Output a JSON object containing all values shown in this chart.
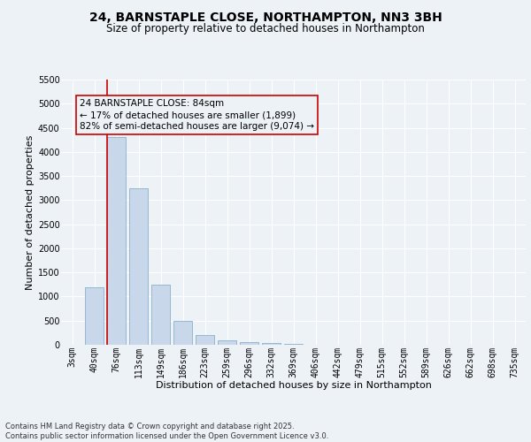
{
  "title_line1": "24, BARNSTAPLE CLOSE, NORTHAMPTON, NN3 3BH",
  "title_line2": "Size of property relative to detached houses in Northampton",
  "xlabel": "Distribution of detached houses by size in Northampton",
  "ylabel": "Number of detached properties",
  "categories": [
    "3sqm",
    "40sqm",
    "76sqm",
    "113sqm",
    "149sqm",
    "186sqm",
    "223sqm",
    "259sqm",
    "296sqm",
    "332sqm",
    "369sqm",
    "406sqm",
    "442sqm",
    "479sqm",
    "515sqm",
    "552sqm",
    "589sqm",
    "626sqm",
    "662sqm",
    "698sqm",
    "735sqm"
  ],
  "values": [
    0,
    1200,
    4300,
    3250,
    1250,
    500,
    200,
    100,
    50,
    30,
    10,
    5,
    0,
    0,
    0,
    0,
    0,
    0,
    0,
    0,
    0
  ],
  "bar_color": "#c8d8ea",
  "bar_edge_color": "#8ab0cc",
  "vline_color": "#cc0000",
  "vline_bar_index": 2,
  "annotation_text": "24 BARNSTAPLE CLOSE: 84sqm\n← 17% of detached houses are smaller (1,899)\n82% of semi-detached houses are larger (9,074) →",
  "annotation_box_edgecolor": "#cc0000",
  "annotation_box_facecolor": "#edf2f7",
  "ylim_max": 5500,
  "yticks": [
    0,
    500,
    1000,
    1500,
    2000,
    2500,
    3000,
    3500,
    4000,
    4500,
    5000,
    5500
  ],
  "bg_color": "#edf2f7",
  "grid_color": "#ffffff",
  "footer_line1": "Contains HM Land Registry data © Crown copyright and database right 2025.",
  "footer_line2": "Contains public sector information licensed under the Open Government Licence v3.0.",
  "title_fontsize": 10,
  "subtitle_fontsize": 8.5,
  "ylabel_fontsize": 8,
  "xlabel_fontsize": 8,
  "tick_fontsize": 7,
  "footer_fontsize": 6,
  "annotation_fontsize": 7.5
}
